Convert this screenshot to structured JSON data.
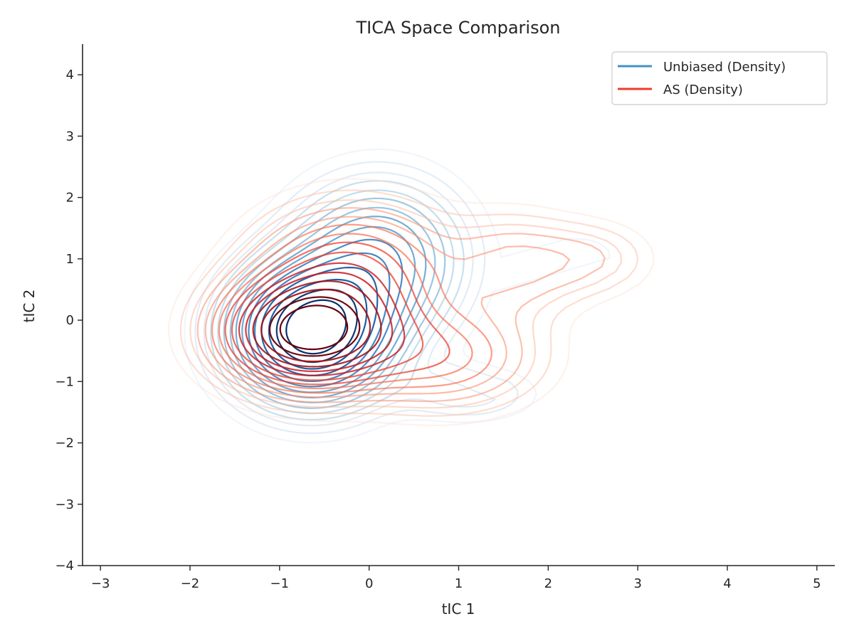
{
  "chart_data": {
    "type": "contour",
    "title": "TICA Space Comparison",
    "xlabel": "tIC 1",
    "ylabel": "tIC 2",
    "xlim": [
      -3.2,
      5.2
    ],
    "ylim": [
      -4.0,
      4.5
    ],
    "xticks": [
      -3,
      -2,
      -1,
      0,
      1,
      2,
      3,
      4,
      5
    ],
    "yticks": [
      -4,
      -3,
      -2,
      -1,
      0,
      1,
      2,
      3,
      4
    ],
    "xtick_labels": [
      "−3",
      "−2",
      "−1",
      "0",
      "1",
      "2",
      "3",
      "4",
      "5"
    ],
    "ytick_labels": [
      "−4",
      "−3",
      "−2",
      "−1",
      "0",
      "1",
      "2",
      "3",
      "4"
    ],
    "grid": false,
    "legend_position": "top-right",
    "series": [
      {
        "name": "Unbiased (Density)",
        "color": "#4292c6",
        "palette": "Blues",
        "peak": [
          -0.65,
          -0.2
        ],
        "components": [
          {
            "mx": -0.65,
            "my": -0.2,
            "sx": 0.55,
            "sy": 0.7,
            "w": 1.0
          },
          {
            "mx": 0.1,
            "my": 1.0,
            "sx": 0.6,
            "sy": 0.8,
            "w": 0.45
          },
          {
            "mx": 1.1,
            "my": -1.2,
            "sx": 0.5,
            "sy": 0.3,
            "w": 0.12
          },
          {
            "mx": 2.3,
            "my": 1.05,
            "sx": 0.35,
            "sy": 0.25,
            "w": 0.07
          }
        ]
      },
      {
        "name": "AS (Density)",
        "color": "#ef3b2c",
        "palette": "Reds",
        "peak": [
          -0.7,
          -0.2
        ],
        "components": [
          {
            "mx": -0.7,
            "my": -0.2,
            "sx": 0.6,
            "sy": 0.55,
            "w": 1.0
          },
          {
            "mx": -0.2,
            "my": 0.8,
            "sx": 0.7,
            "sy": 0.7,
            "w": 0.4
          },
          {
            "mx": 0.8,
            "my": -0.6,
            "sx": 0.7,
            "sy": 0.55,
            "w": 0.3
          },
          {
            "mx": 1.6,
            "my": 0.9,
            "sx": 0.5,
            "sy": 0.55,
            "w": 0.18
          },
          {
            "mx": 2.5,
            "my": 1.0,
            "sx": 0.45,
            "sy": 0.4,
            "w": 0.12
          }
        ]
      }
    ]
  }
}
